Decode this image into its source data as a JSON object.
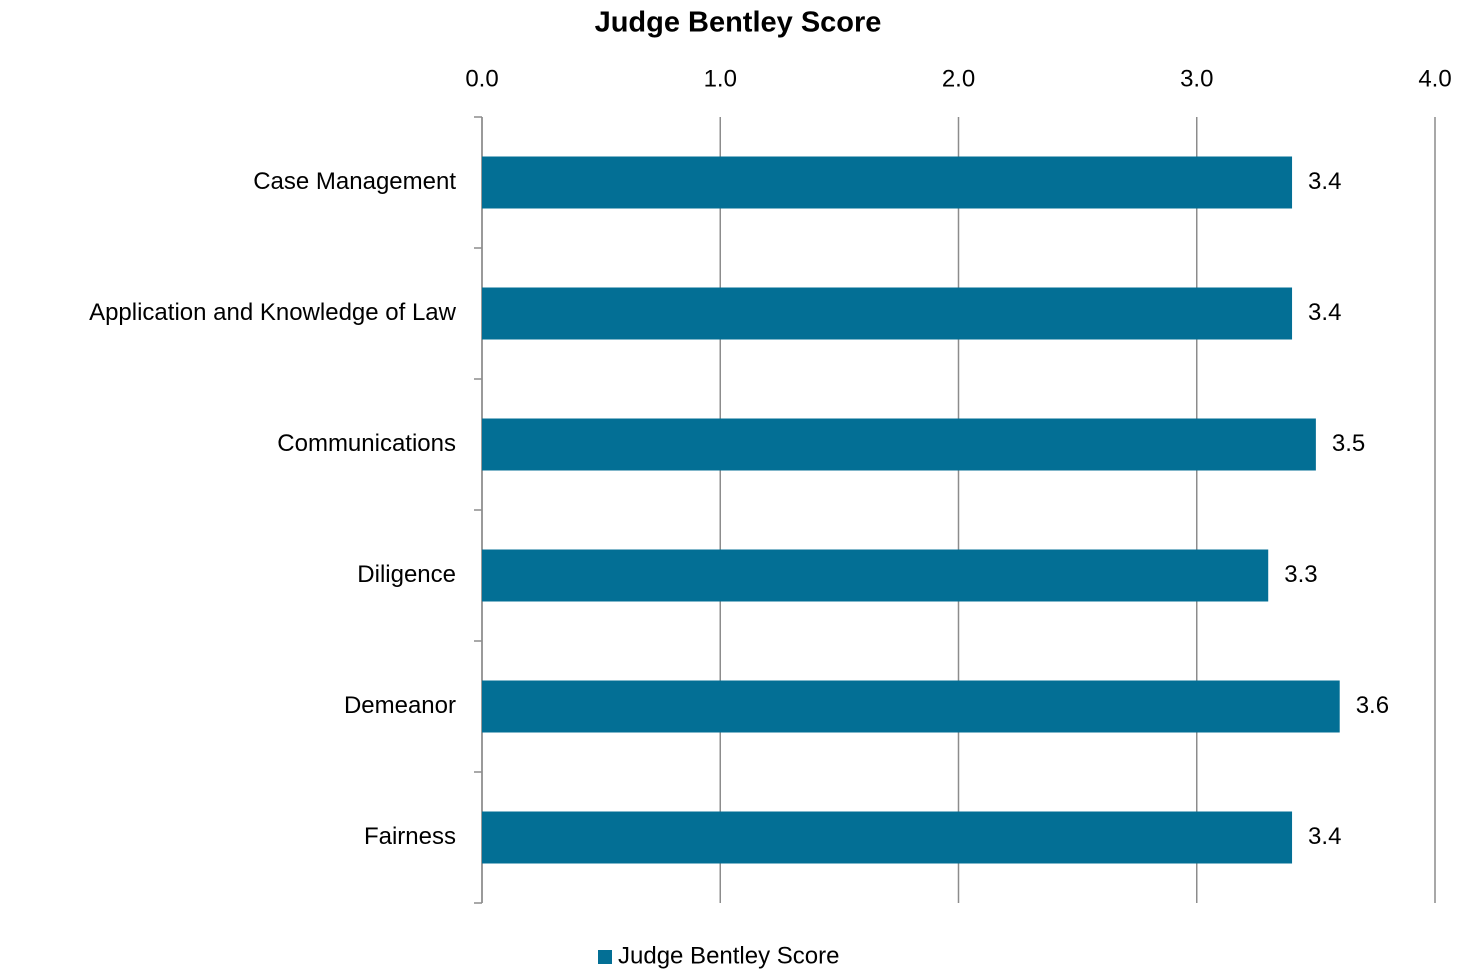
{
  "chart_data": {
    "type": "hbar",
    "title": "Judge Bentley Score",
    "categories": [
      "Case Management",
      "Application and Knowledge of Law",
      "Communications",
      "Diligence",
      "Demeanor",
      "Fairness"
    ],
    "series": [
      {
        "name": "Judge Bentley Score",
        "color": "#036f95",
        "values": [
          3.4,
          3.4,
          3.5,
          3.3,
          3.6,
          3.4
        ]
      }
    ],
    "xlim": [
      0,
      4
    ],
    "xticks": [
      {
        "value": 0,
        "label": "0.0"
      },
      {
        "value": 1,
        "label": "1.0"
      },
      {
        "value": 2,
        "label": "2.0"
      },
      {
        "value": 3,
        "label": "3.0"
      },
      {
        "value": 4,
        "label": "4.0"
      }
    ],
    "grid": true,
    "legend": "bottom"
  }
}
